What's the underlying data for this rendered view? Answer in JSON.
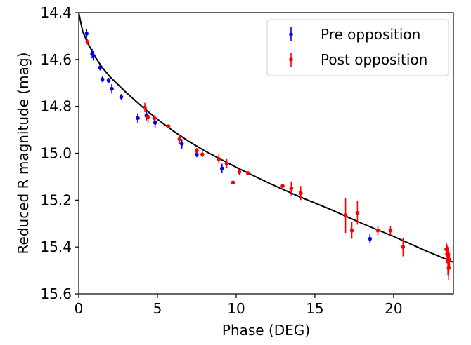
{
  "chart_data": {
    "type": "scatter",
    "title": "",
    "xlabel": "Phase (DEG)",
    "ylabel": "Reduced R magnitude (mag)",
    "xlim": [
      0,
      23.8
    ],
    "ylim": [
      15.6,
      14.4
    ],
    "y_inverted": true,
    "xticks": [
      0,
      5,
      10,
      15,
      20
    ],
    "xtick_labels": [
      "0",
      "5",
      "10",
      "15",
      "20"
    ],
    "yticks": [
      14.4,
      14.6,
      14.8,
      15.0,
      15.2,
      15.4,
      15.6
    ],
    "ytick_labels": [
      "14.4",
      "14.6",
      "14.8",
      "15.0",
      "15.2",
      "15.4",
      "15.6"
    ],
    "grid": false,
    "legend_position": "top-right",
    "series": [
      {
        "name": "Pre opposition",
        "color": "#0000ff",
        "points": [
          {
            "x": 0.5,
            "y": 14.49,
            "err": 0.02
          },
          {
            "x": 0.85,
            "y": 14.575,
            "err": 0.02
          },
          {
            "x": 0.95,
            "y": 14.585,
            "err": 0.02
          },
          {
            "x": 1.35,
            "y": 14.635,
            "err": 0.012
          },
          {
            "x": 1.5,
            "y": 14.685,
            "err": 0.012
          },
          {
            "x": 1.9,
            "y": 14.69,
            "err": 0.012
          },
          {
            "x": 2.1,
            "y": 14.725,
            "err": 0.02
          },
          {
            "x": 2.7,
            "y": 14.76,
            "err": 0.012
          },
          {
            "x": 3.75,
            "y": 14.85,
            "err": 0.02
          },
          {
            "x": 4.3,
            "y": 14.84,
            "err": 0.02
          },
          {
            "x": 4.85,
            "y": 14.87,
            "err": 0.02
          },
          {
            "x": 6.55,
            "y": 14.96,
            "err": 0.02
          },
          {
            "x": 7.5,
            "y": 15.005,
            "err": 0.012
          },
          {
            "x": 9.1,
            "y": 15.065,
            "err": 0.02
          },
          {
            "x": 18.5,
            "y": 15.365,
            "err": 0.02
          }
        ]
      },
      {
        "name": "Post opposition",
        "color": "#ff0000",
        "points": [
          {
            "x": 0.55,
            "y": 14.525,
            "err": 0.012
          },
          {
            "x": 4.2,
            "y": 14.805,
            "err": 0.02
          },
          {
            "x": 4.4,
            "y": 14.845,
            "err": 0.025
          },
          {
            "x": 4.8,
            "y": 14.85,
            "err": 0.012
          },
          {
            "x": 5.7,
            "y": 14.885,
            "err": 0.0
          },
          {
            "x": 6.4,
            "y": 14.94,
            "err": 0.02
          },
          {
            "x": 7.5,
            "y": 14.99,
            "err": 0.012
          },
          {
            "x": 7.85,
            "y": 15.005,
            "err": 0.012
          },
          {
            "x": 8.9,
            "y": 15.025,
            "err": 0.02
          },
          {
            "x": 9.4,
            "y": 15.045,
            "err": 0.02
          },
          {
            "x": 9.8,
            "y": 15.125,
            "err": 0.0
          },
          {
            "x": 10.2,
            "y": 15.08,
            "err": 0.012
          },
          {
            "x": 10.75,
            "y": 15.085,
            "err": 0.0
          },
          {
            "x": 12.95,
            "y": 15.14,
            "err": 0.0
          },
          {
            "x": 13.5,
            "y": 15.15,
            "err": 0.03
          },
          {
            "x": 14.1,
            "y": 15.17,
            "err": 0.03
          },
          {
            "x": 16.95,
            "y": 15.265,
            "err": 0.075
          },
          {
            "x": 17.35,
            "y": 15.33,
            "err": 0.035
          },
          {
            "x": 17.7,
            "y": 15.255,
            "err": 0.05
          },
          {
            "x": 19.0,
            "y": 15.33,
            "err": 0.02
          },
          {
            "x": 19.8,
            "y": 15.33,
            "err": 0.02
          },
          {
            "x": 20.6,
            "y": 15.4,
            "err": 0.04
          },
          {
            "x": 23.35,
            "y": 15.41,
            "err": 0.03
          },
          {
            "x": 23.4,
            "y": 15.43,
            "err": 0.04
          },
          {
            "x": 23.45,
            "y": 15.46,
            "err": 0.06
          },
          {
            "x": 23.5,
            "y": 15.49,
            "err": 0.05
          },
          {
            "x": 23.55,
            "y": 15.455,
            "err": 0.03
          }
        ]
      }
    ],
    "fit_curve": {
      "color": "#000000",
      "points": [
        {
          "x": 0,
          "y": 14.4
        },
        {
          "x": 0.25,
          "y": 14.48
        },
        {
          "x": 0.5,
          "y": 14.52
        },
        {
          "x": 1,
          "y": 14.585
        },
        {
          "x": 1.5,
          "y": 14.635
        },
        {
          "x": 2,
          "y": 14.675
        },
        {
          "x": 3,
          "y": 14.74
        },
        {
          "x": 4,
          "y": 14.8
        },
        {
          "x": 5,
          "y": 14.855
        },
        {
          "x": 6,
          "y": 14.905
        },
        {
          "x": 7,
          "y": 14.95
        },
        {
          "x": 8,
          "y": 14.99
        },
        {
          "x": 9,
          "y": 15.025
        },
        {
          "x": 10,
          "y": 15.06
        },
        {
          "x": 12,
          "y": 15.125
        },
        {
          "x": 14,
          "y": 15.185
        },
        {
          "x": 16,
          "y": 15.24
        },
        {
          "x": 18,
          "y": 15.3
        },
        {
          "x": 20,
          "y": 15.355
        },
        {
          "x": 22,
          "y": 15.415
        },
        {
          "x": 23.8,
          "y": 15.465
        }
      ]
    }
  }
}
